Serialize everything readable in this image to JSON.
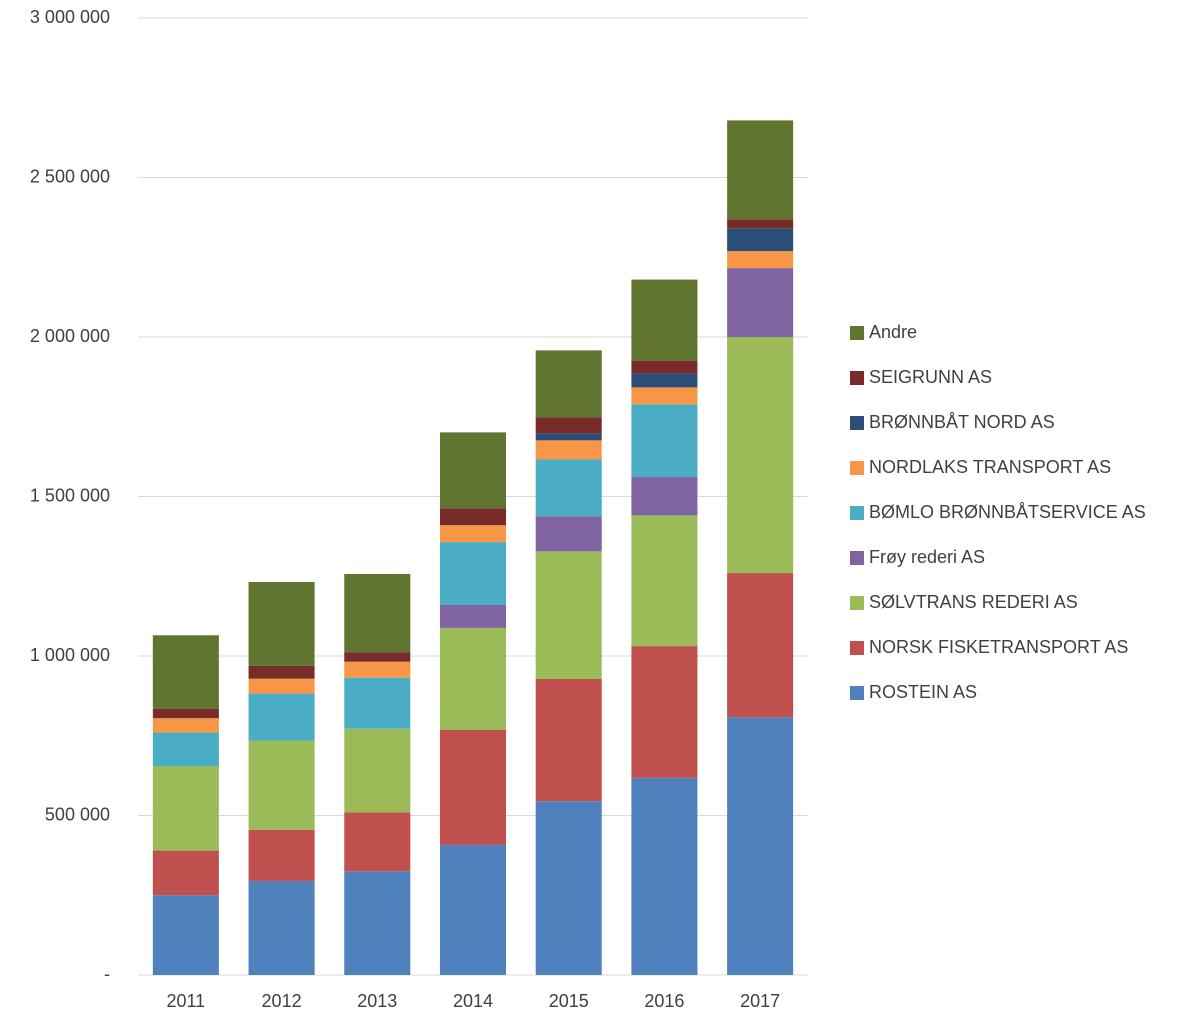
{
  "chart_data": {
    "type": "stacked_bar",
    "categories": [
      "2011",
      "2012",
      "2013",
      "2014",
      "2015",
      "2016",
      "2017"
    ],
    "series": [
      {
        "name": "ROSTEIN AS",
        "color": "#4f81bd",
        "values": [
          250000,
          295000,
          325000,
          408000,
          545000,
          618000,
          808000
        ]
      },
      {
        "name": "NORSK FISKETRANSPORT AS",
        "color": "#c0504d",
        "values": [
          140000,
          160000,
          185000,
          360000,
          383000,
          413000,
          452000
        ]
      },
      {
        "name": "SØLVTRANS REDERI AS",
        "color": "#9bbb59",
        "values": [
          265000,
          280000,
          262000,
          320000,
          400000,
          410000,
          740000
        ]
      },
      {
        "name": "Frøy rederi AS",
        "color": "#8064a2",
        "values": [
          0,
          0,
          0,
          72000,
          110000,
          120000,
          216000
        ]
      },
      {
        "name": "BØMLO BRØNNBÅTSERVICE AS",
        "color": "#4bacc6",
        "values": [
          105000,
          147000,
          160000,
          197000,
          178000,
          228000,
          0
        ]
      },
      {
        "name": "NORDLAKS TRANSPORT AS",
        "color": "#f79646",
        "values": [
          45000,
          47000,
          50000,
          53000,
          60000,
          53000,
          53000
        ]
      },
      {
        "name": "BRØNNBÅT NORD AS",
        "color": "#2c4d75",
        "values": [
          0,
          0,
          0,
          0,
          22000,
          44000,
          72000
        ]
      },
      {
        "name": "SEIGRUNN AS",
        "color": "#772c2a",
        "values": [
          30000,
          40000,
          30000,
          53000,
          50000,
          40000,
          28000
        ]
      },
      {
        "name": "Andre",
        "color": "#5f7530",
        "values": [
          230000,
          263000,
          245000,
          238000,
          210000,
          254000,
          310000
        ]
      }
    ],
    "ylim": [
      0,
      3000000
    ],
    "yticks": [
      {
        "value": 0,
        "label": "-"
      },
      {
        "value": 500000,
        "label": "500 000"
      },
      {
        "value": 1000000,
        "label": "1 000 000"
      },
      {
        "value": 1500000,
        "label": "1 500 000"
      },
      {
        "value": 2000000,
        "label": "2 000 000"
      },
      {
        "value": 2500000,
        "label": "2 500 000"
      },
      {
        "value": 3000000,
        "label": "3 000 000"
      }
    ],
    "grid": true,
    "legend": "right"
  }
}
